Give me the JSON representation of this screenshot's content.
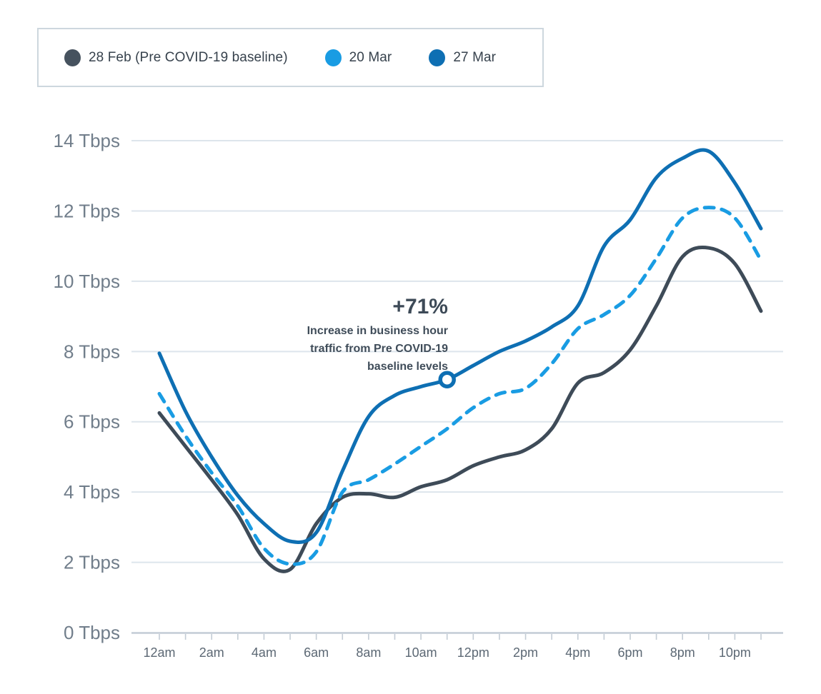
{
  "legend": {
    "items": [
      {
        "label": "28 Feb (Pre COVID-19 baseline)",
        "color": "#46525e"
      },
      {
        "label": "20 Mar",
        "color": "#199ce3"
      },
      {
        "label": "27 Mar",
        "color": "#0e6fb3"
      }
    ]
  },
  "annotation": {
    "title": "+71%",
    "lines": [
      "Increase in business hour",
      "traffic from Pre COVID-19",
      "baseline levels"
    ]
  },
  "chart_data": {
    "type": "line",
    "x": [
      "12am",
      "1am",
      "2am",
      "3am",
      "4am",
      "5am",
      "6am",
      "7am",
      "8am",
      "9am",
      "10am",
      "11am",
      "12pm",
      "1pm",
      "2pm",
      "3pm",
      "4pm",
      "5pm",
      "6pm",
      "7pm",
      "8pm",
      "9pm",
      "10pm",
      "11pm"
    ],
    "x_tick_labels_shown": [
      "12am",
      "2am",
      "4am",
      "6am",
      "8am",
      "10am",
      "12pm",
      "2pm",
      "4pm",
      "6pm",
      "8pm",
      "10pm"
    ],
    "y_tick_labels": [
      "0 Tbps",
      "2 Tbps",
      "4 Tbps",
      "6 Tbps",
      "8 Tbps",
      "10 Tbps",
      "12 Tbps",
      "14 Tbps"
    ],
    "ylim": [
      0,
      14
    ],
    "y_unit": "Tbps",
    "grid": "horizontal",
    "legend_position": "top-left",
    "series": [
      {
        "name": "28 Feb (Pre COVID-19 baseline)",
        "style": "solid",
        "color": "#3e4b58",
        "values": [
          6.25,
          5.3,
          4.35,
          3.35,
          2.1,
          1.8,
          3.1,
          3.85,
          3.95,
          3.85,
          4.15,
          4.35,
          4.75,
          5.0,
          5.2,
          5.8,
          7.1,
          7.4,
          8.05,
          9.3,
          10.7,
          10.95,
          10.5,
          9.15
        ]
      },
      {
        "name": "20 Mar",
        "style": "dashed",
        "color": "#199ce3",
        "values": [
          6.8,
          5.6,
          4.55,
          3.6,
          2.4,
          1.95,
          2.3,
          4.0,
          4.35,
          4.8,
          5.3,
          5.8,
          6.4,
          6.8,
          6.95,
          7.65,
          8.65,
          9.05,
          9.6,
          10.65,
          11.8,
          12.1,
          11.8,
          10.6
        ]
      },
      {
        "name": "27 Mar",
        "style": "solid",
        "color": "#0e6fb3",
        "values": [
          7.95,
          6.3,
          5.0,
          3.9,
          3.1,
          2.6,
          2.85,
          4.6,
          6.15,
          6.75,
          7.0,
          7.2,
          7.6,
          8.0,
          8.3,
          8.7,
          9.3,
          11.0,
          11.75,
          12.95,
          13.5,
          13.7,
          12.8,
          11.5
        ]
      }
    ],
    "annotation_marker": {
      "series": "27 Mar",
      "x": "11am",
      "value": 7.2
    },
    "colors": {
      "gridline": "#dde5ec",
      "axis": "#c3ccd5",
      "tick": "#c3ccd5",
      "y_label": "#717e8b",
      "x_label": "#5c6874"
    }
  }
}
